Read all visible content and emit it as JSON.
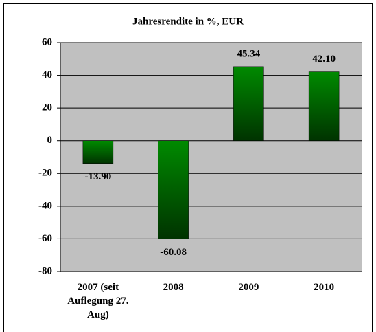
{
  "chart_data": {
    "type": "bar",
    "title": "Jahresrendite in %, EUR",
    "categories": [
      "2007 (seit Auflegung 27. Aug)",
      "2008",
      "2009",
      "2010"
    ],
    "values": [
      -13.9,
      -60.08,
      45.34,
      42.1
    ],
    "value_labels": [
      "-13.90",
      "-60.08",
      "45.34",
      "42.10"
    ],
    "color": "#008000",
    "ylim": [
      -80,
      60
    ],
    "yticks": [
      -80,
      -60,
      -40,
      -20,
      0,
      20,
      40,
      60
    ],
    "grid": true
  }
}
